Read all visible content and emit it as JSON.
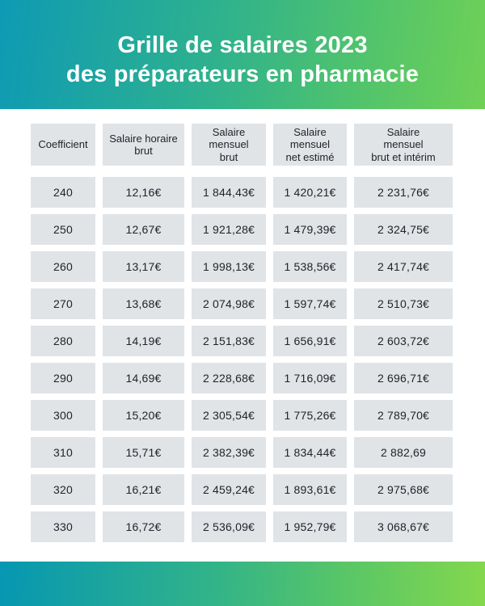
{
  "header": {
    "title_line1": "Grille de salaires 2023",
    "title_line2": "des préparateurs en pharmacie"
  },
  "chart_data": {
    "type": "table",
    "title": "Grille de salaires 2023 des préparateurs en pharmacie",
    "columns": [
      "Coefficient",
      "Salaire horaire\nbrut",
      "Salaire\nmensuel\nbrut",
      "Salaire\nmensuel\nnet estimé",
      "Salaire\nmensuel\nbrut et intérim"
    ],
    "rows": [
      [
        "240",
        "12,16€",
        "1 844,43€",
        "1 420,21€",
        "2 231,76€"
      ],
      [
        "250",
        "12,67€",
        "1 921,28€",
        "1 479,39€",
        "2 324,75€"
      ],
      [
        "260",
        "13,17€",
        "1 998,13€",
        "1 538,56€",
        "2 417,74€"
      ],
      [
        "270",
        "13,68€",
        "2 074,98€",
        "1 597,74€",
        "2 510,73€"
      ],
      [
        "280",
        "14,19€",
        "2 151,83€",
        "1 656,91€",
        "2 603,72€"
      ],
      [
        "290",
        "14,69€",
        "2 228,68€",
        "1 716,09€",
        "2 696,71€"
      ],
      [
        "300",
        "15,20€",
        "2 305,54€",
        "1 775,26€",
        "2 789,70€"
      ],
      [
        "310",
        "15,71€",
        "2 382,39€",
        "1 834,44€",
        "2 882,69"
      ],
      [
        "320",
        "16,21€",
        "2 459,24€",
        "1 893,61€",
        "2 975,68€"
      ],
      [
        "330",
        "16,72€",
        "2 536,09€",
        "1 952,79€",
        "3 068,67€"
      ]
    ]
  },
  "colors": {
    "banner_gradient_start": "#0e9ab4",
    "banner_gradient_end": "#6fd156",
    "footer_gradient_start": "#0697b2",
    "footer_gradient_end": "#84d84d",
    "cell_background": "#e0e4e7",
    "cell_text": "#212428",
    "title_text": "#ffffff"
  }
}
